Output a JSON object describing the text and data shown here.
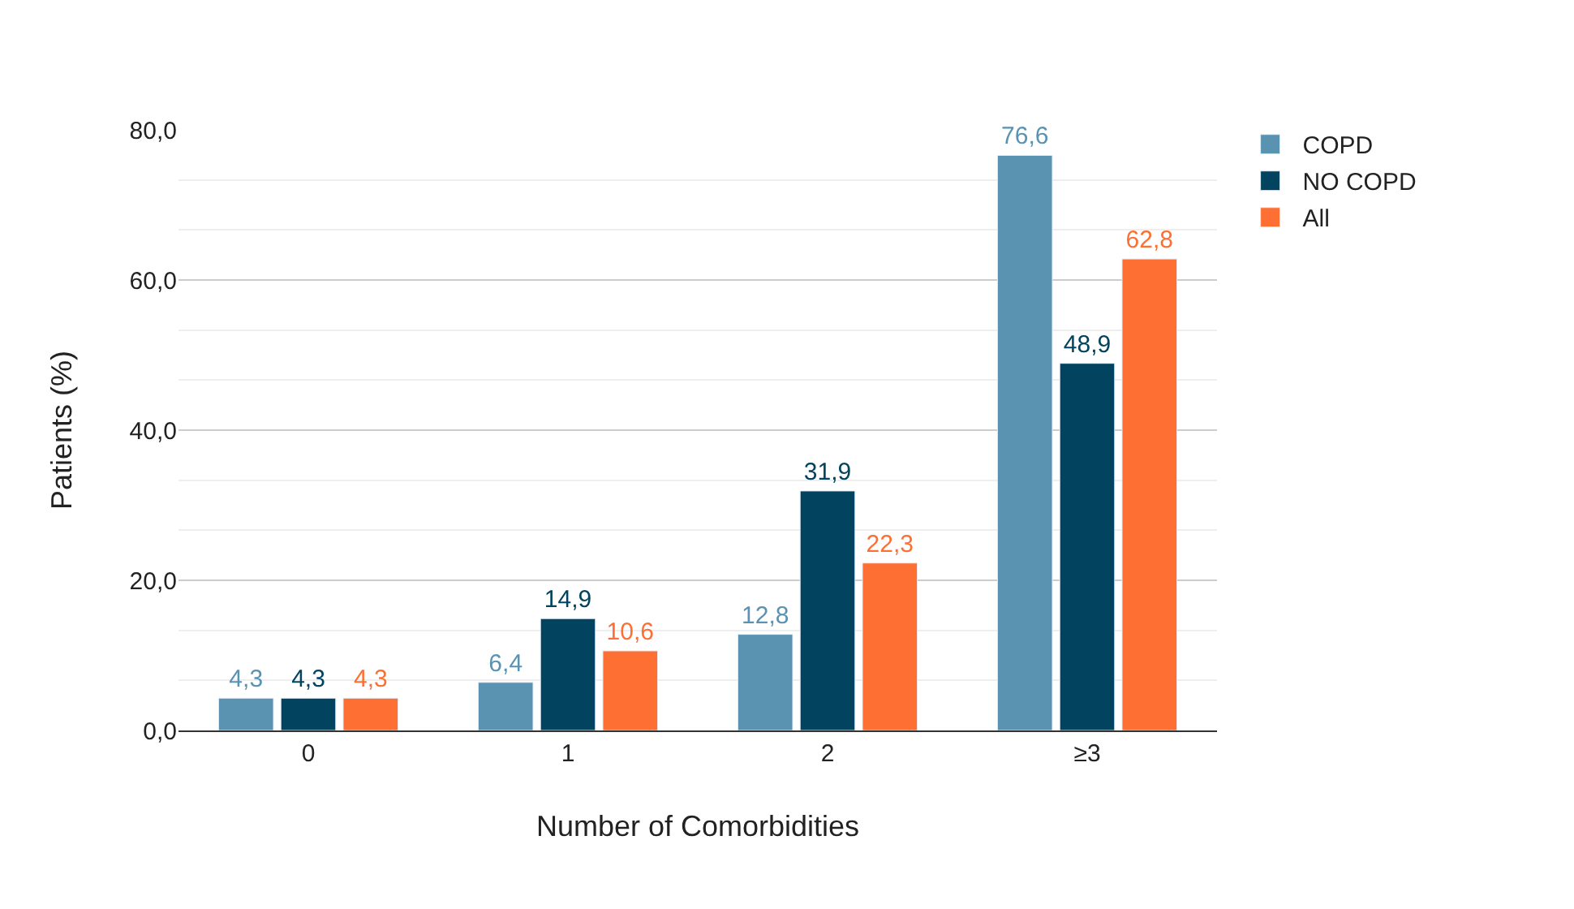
{
  "chart_data": {
    "type": "bar",
    "xlabel": "Number of Comorbidities",
    "ylabel": "Patients (%)",
    "categories": [
      "0",
      "1",
      "2",
      "≥3"
    ],
    "series": [
      {
        "name": "COPD",
        "color": "#5a93b1",
        "values": [
          4.3,
          6.4,
          12.8,
          76.6
        ],
        "value_labels": [
          "4,3",
          "6,4",
          "12,8",
          "76,6"
        ]
      },
      {
        "name": "NO COPD",
        "color": "#02445f",
        "values": [
          4.3,
          14.9,
          31.9,
          48.9
        ],
        "value_labels": [
          "4,3",
          "14,9",
          "31,9",
          "48,9"
        ]
      },
      {
        "name": "All",
        "color": "#fd6f32",
        "values": [
          4.3,
          10.6,
          22.3,
          62.8
        ],
        "value_labels": [
          "4,3",
          "10,6",
          "22,3",
          "62,8"
        ]
      }
    ],
    "ylim": [
      0,
      80
    ],
    "yticks": [
      {
        "value": 0,
        "label": "0,0"
      },
      {
        "value": 20,
        "label": "20,0"
      },
      {
        "value": 40,
        "label": "40,0"
      },
      {
        "value": 60,
        "label": "60,0"
      },
      {
        "value": 80,
        "label": "80,0"
      }
    ],
    "grid": "y",
    "legend": "top right"
  }
}
